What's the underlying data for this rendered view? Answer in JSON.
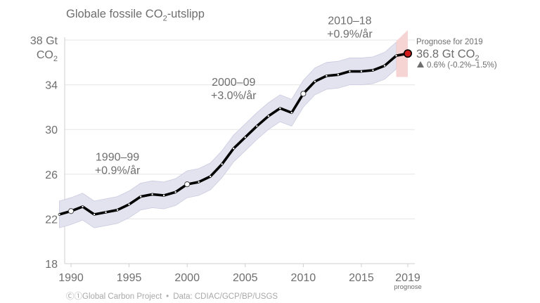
{
  "title": {
    "prefix": "Globale fossile CO",
    "sub": "2",
    "suffix": "-utslipp"
  },
  "footer": {
    "credit": "Ⓒ①Global Carbon Project",
    "separator": "•",
    "source": "Data: CDIAC/GCP/BP/USGS"
  },
  "colors": {
    "line": "#000000",
    "band": "#e3e3f0",
    "projection_band": "#f7d4d4",
    "projection_point": "#d11a1a",
    "grid": "#e6e6e6",
    "text": "#6e6e6e"
  },
  "chart_data": {
    "type": "line",
    "xlim": [
      1989.5,
      2019.5
    ],
    "ylim": [
      18,
      38
    ],
    "x_ticks": [
      1990,
      1995,
      2000,
      2005,
      2010,
      2015,
      2019
    ],
    "x_tick_labels": [
      "1990",
      "1995",
      "2000",
      "2005",
      "2010",
      "2015",
      "2019"
    ],
    "x_tick_sublabel": "prognose",
    "y_ticks": [
      18,
      22,
      26,
      30,
      34,
      38
    ],
    "y_tick_labels": [
      "18",
      "22",
      "26",
      "30",
      "34",
      "38 Gt"
    ],
    "y_unit": {
      "prefix": "CO",
      "sub": "2"
    },
    "grid": "horizontal",
    "x": [
      1989,
      1990,
      1991,
      1992,
      1993,
      1994,
      1995,
      1996,
      1997,
      1998,
      1999,
      2000,
      2001,
      2002,
      2003,
      2004,
      2005,
      2006,
      2007,
      2008,
      2009,
      2010,
      2011,
      2012,
      2013,
      2014,
      2015,
      2016,
      2017,
      2018,
      2019
    ],
    "values": [
      22.4,
      22.7,
      23.1,
      22.4,
      22.6,
      22.8,
      23.3,
      24.0,
      24.2,
      24.1,
      24.4,
      25.1,
      25.3,
      25.8,
      26.9,
      28.3,
      29.3,
      30.3,
      31.2,
      31.9,
      31.5,
      33.2,
      34.3,
      34.8,
      34.9,
      35.2,
      35.2,
      35.3,
      35.7,
      36.6,
      36.8
    ],
    "uncertainty": 1.2,
    "projection_range": [
      34.7,
      38.9
    ],
    "highlight_years": [
      1990,
      2000,
      2010
    ],
    "projection_year": 2019,
    "annotations": [
      {
        "year": 1994,
        "value": 27.2,
        "period": "1990–99",
        "rate": "+0.9%/år"
      },
      {
        "year": 2004,
        "value": 33.9,
        "period": "2000–09",
        "rate": "+3.0%/år"
      },
      {
        "year": 2014,
        "value": 39.4,
        "period": "2010–18",
        "rate": "+0.9%/år"
      }
    ],
    "projection_label": {
      "heading": "Prognose for 2019",
      "value_prefix": "36.8 Gt CO",
      "value_sub": "2",
      "change_icon": "triangle-up-icon",
      "change": "0.6% (-0.2%–1.5%)"
    }
  }
}
